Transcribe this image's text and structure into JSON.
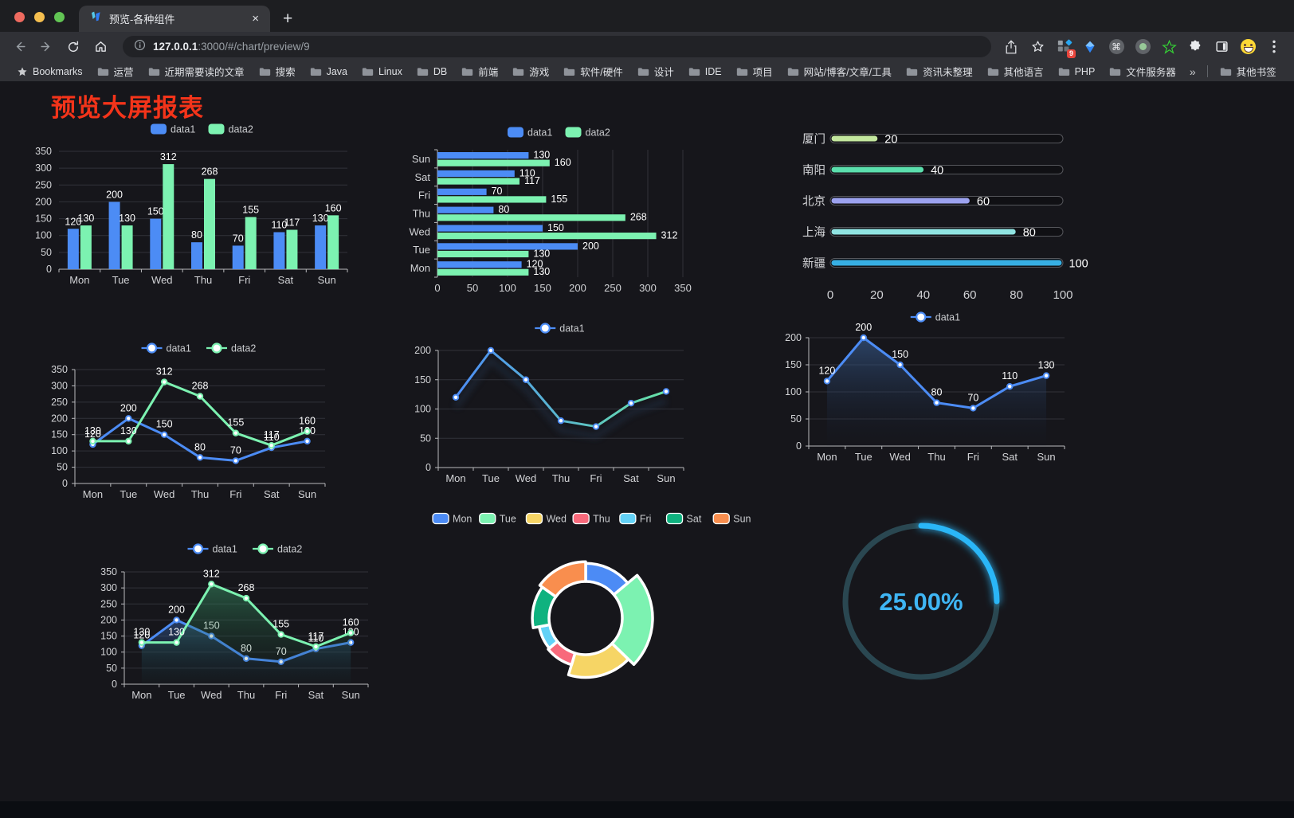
{
  "browser": {
    "traffic_lights": [
      "#ee6a5f",
      "#f5bf4f",
      "#62c554"
    ],
    "tab": {
      "title": "预览-各种组件",
      "close": "×",
      "new_tab": "+"
    },
    "address": {
      "host": "127.0.0.1",
      "rest": ":3000/#/chart/preview/9"
    },
    "extension_badge": "9",
    "bookmarks": {
      "label": "Bookmarks",
      "folders": [
        "运营",
        "近期需要读的文章",
        "搜索",
        "Java",
        "Linux",
        "DB",
        "前端",
        "游戏",
        "软件/硬件",
        "设计",
        "IDE",
        "项目",
        "网站/博客/文章/工具",
        "资讯未整理",
        "其他语言",
        "PHP",
        "文件服务器"
      ],
      "overflow": "»",
      "other": "其他书签"
    }
  },
  "page": {
    "title": "预览大屏报表",
    "title_color": "#f4341a"
  },
  "chart_data": [
    {
      "id": "bar-grouped",
      "type": "bar",
      "categories": [
        "Mon",
        "Tue",
        "Wed",
        "Thu",
        "Fri",
        "Sat",
        "Sun"
      ],
      "series": [
        {
          "name": "data1",
          "color": "#4C8CF5",
          "values": [
            120,
            200,
            150,
            80,
            70,
            110,
            130
          ]
        },
        {
          "name": "data2",
          "color": "#7CF2B1",
          "values": [
            130,
            130,
            312,
            268,
            155,
            117,
            160
          ]
        }
      ],
      "ylim": [
        0,
        350
      ],
      "ystep": 50,
      "legend_position": "top",
      "grid": true
    },
    {
      "id": "bar-horizontal",
      "type": "bar-horizontal",
      "categories_top_to_bottom": [
        "Sun",
        "Sat",
        "Fri",
        "Thu",
        "Wed",
        "Tue",
        "Mon"
      ],
      "series": [
        {
          "name": "data1",
          "color": "#4C8CF5",
          "values_top_to_bottom": [
            130,
            110,
            70,
            80,
            150,
            200,
            120
          ]
        },
        {
          "name": "data2",
          "color": "#7CF2B1",
          "values_top_to_bottom": [
            160,
            117,
            155,
            268,
            312,
            130,
            130
          ]
        }
      ],
      "xlim": [
        0,
        350
      ],
      "xstep": 50,
      "legend_position": "top",
      "grid": true
    },
    {
      "id": "progress-bars",
      "type": "progress",
      "max": 100,
      "axis_ticks": [
        0,
        20,
        40,
        60,
        80,
        100
      ],
      "items": [
        {
          "label": "厦门",
          "value": 20,
          "color": "#C3E79E"
        },
        {
          "label": "南阳",
          "value": 40,
          "color": "#5BDFAD"
        },
        {
          "label": "北京",
          "value": 60,
          "color": "#9CA2EF"
        },
        {
          "label": "上海",
          "value": 80,
          "color": "#90E4E2"
        },
        {
          "label": "新疆",
          "value": 100,
          "color": "#37AFE4"
        }
      ]
    },
    {
      "id": "line-basic",
      "type": "line",
      "categories": [
        "Mon",
        "Tue",
        "Wed",
        "Thu",
        "Fri",
        "Sat",
        "Sun"
      ],
      "series": [
        {
          "name": "data1",
          "color": "#4C8CF5",
          "values": [
            120,
            200,
            150,
            80,
            70,
            110,
            130
          ]
        },
        {
          "name": "data2",
          "color": "#7CF2B1",
          "values": [
            130,
            130,
            312,
            268,
            155,
            117,
            160
          ]
        }
      ],
      "ylim": [
        0,
        350
      ],
      "ystep": 50,
      "value_labels": true,
      "legend_position": "top",
      "grid": true
    },
    {
      "id": "line-gradient",
      "type": "line",
      "categories": [
        "Mon",
        "Tue",
        "Wed",
        "Thu",
        "Fri",
        "Sat",
        "Sun"
      ],
      "series": [
        {
          "name": "data1",
          "color": "#4D8DF6",
          "gradient": [
            "#4D8DF6",
            "#67E3A6"
          ],
          "values": [
            120,
            200,
            150,
            80,
            70,
            110,
            130
          ]
        }
      ],
      "ylim": [
        0,
        200
      ],
      "ystep": 50,
      "value_labels": false,
      "legend_position": "top",
      "grid": true
    },
    {
      "id": "area-single",
      "type": "area",
      "categories": [
        "Mon",
        "Tue",
        "Wed",
        "Thu",
        "Fri",
        "Sat",
        "Sun"
      ],
      "series": [
        {
          "name": "data1",
          "color": "#4C8CF5",
          "area": [
            "rgba(62,105,165,0.55)",
            "rgba(20,30,50,0.03)"
          ],
          "values": [
            120,
            200,
            150,
            80,
            70,
            110,
            130
          ]
        }
      ],
      "ylim": [
        0,
        200
      ],
      "ystep": 50,
      "value_labels": true,
      "legend_position": "top",
      "grid": true
    },
    {
      "id": "area-double",
      "type": "area",
      "categories": [
        "Mon",
        "Tue",
        "Wed",
        "Thu",
        "Fri",
        "Sat",
        "Sun"
      ],
      "series": [
        {
          "name": "data1",
          "color": "#4C8CF5",
          "area": [
            "rgba(60,110,190,0.45)",
            "rgba(20,40,70,0.04)"
          ],
          "values": [
            120,
            200,
            150,
            80,
            70,
            110,
            130
          ]
        },
        {
          "name": "data2",
          "color": "#7CF2B1",
          "area": [
            "rgba(58,150,104,0.50)",
            "rgba(20,60,40,0.04)"
          ],
          "values": [
            130,
            130,
            312,
            268,
            155,
            117,
            160
          ]
        }
      ],
      "ylim": [
        0,
        350
      ],
      "ystep": 50,
      "value_labels": true,
      "legend_position": "top",
      "grid": true
    },
    {
      "id": "pie-rose",
      "type": "pie",
      "rose": true,
      "donut": true,
      "labels": [
        "Mon",
        "Tue",
        "Wed",
        "Thu",
        "Fri",
        "Sat",
        "Sun"
      ],
      "values": [
        120,
        200,
        150,
        80,
        70,
        110,
        130
      ],
      "colors": [
        "#4C8BF5",
        "#7CF2B1",
        "#F6D565",
        "#F8697B",
        "#63D2F7",
        "#0FB27F",
        "#F98E4E"
      ],
      "legend_position": "top"
    },
    {
      "id": "gauge",
      "type": "gauge",
      "value": 25,
      "label": "25.00%",
      "color": "#2AB6F7",
      "track_color": "#2A4751",
      "text_color": "#3FB5F3"
    }
  ]
}
